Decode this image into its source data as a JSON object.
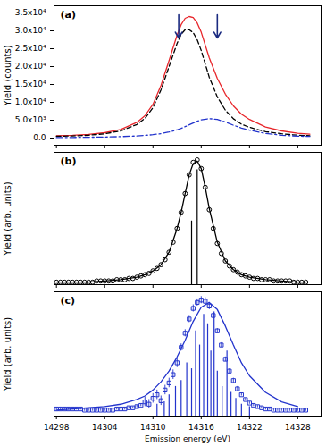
{
  "chart_data": [
    {
      "type": "line",
      "title": "(a)",
      "y_label": "Yield (counts)",
      "grid": false,
      "tick_labels": "y",
      "xlim": [
        14297.7,
        14330.9
      ],
      "xticks": [
        14298,
        14304,
        14310,
        14316,
        14322,
        14328
      ],
      "ylim": [
        -2000,
        37000
      ],
      "yticks": [
        {
          "value": 0,
          "label": "0.0"
        },
        {
          "value": 5000,
          "label": "5.0x10³"
        },
        {
          "value": 10000,
          "label": "1.0x10⁴"
        },
        {
          "value": 15000,
          "label": "1.5x10⁴"
        },
        {
          "value": 20000,
          "label": "2.0x10⁴"
        },
        {
          "value": 25000,
          "label": "2.5x10⁴"
        },
        {
          "value": 30000,
          "label": "3.0x10⁴"
        },
        {
          "value": 35000,
          "label": "3.5x10⁴"
        }
      ],
      "series": [
        {
          "type": "line",
          "color": "#e8262b",
          "line_style": "solid",
          "x": [
            14298,
            14300,
            14302,
            14304,
            14306,
            14308,
            14309,
            14310,
            14311,
            14312,
            14313,
            14313.5,
            14314,
            14314.5,
            14315,
            14315.5,
            14316,
            14317,
            14318,
            14319,
            14320,
            14321,
            14322,
            14324,
            14326,
            14328,
            14329.5
          ],
          "values": [
            650,
            780,
            1030,
            1500,
            2400,
            4400,
            6250,
            9450,
            14750,
            21700,
            28800,
            31700,
            33500,
            34000,
            33700,
            32200,
            29600,
            22450,
            16700,
            12300,
            9000,
            6700,
            5200,
            3100,
            2000,
            1350,
            1100
          ]
        },
        {
          "type": "line",
          "color": "#000000",
          "line_style": "dashed",
          "x": [
            14298,
            14300,
            14302,
            14304,
            14306,
            14308,
            14309,
            14310,
            14311,
            14312,
            14313,
            14313.5,
            14314,
            14314.5,
            14315,
            14315.5,
            14316,
            14317,
            14318,
            14319,
            14320,
            14321,
            14322,
            14324,
            14326,
            14328,
            14329.5
          ],
          "values": [
            500,
            600,
            800,
            1200,
            2000,
            3800,
            5500,
            8500,
            13500,
            20000,
            26500,
            29000,
            30300,
            30300,
            29500,
            27500,
            24500,
            17000,
            11500,
            7800,
            5400,
            3900,
            3000,
            1800,
            1200,
            800,
            650
          ]
        },
        {
          "type": "line",
          "color": "#2233cc",
          "line_style": "dashdot",
          "x": [
            14298,
            14300,
            14302,
            14304,
            14306,
            14308,
            14309,
            14310,
            14311,
            14312,
            14313,
            14313.5,
            14314,
            14314.5,
            14315,
            14315.5,
            14316,
            14317,
            14318,
            14319,
            14320,
            14321,
            14322,
            14324,
            14326,
            14328,
            14329.5
          ],
          "values": [
            150,
            180,
            230,
            300,
            400,
            600,
            750,
            950,
            1250,
            1700,
            2300,
            2700,
            3200,
            3700,
            4200,
            4700,
            5100,
            5450,
            5200,
            4500,
            3600,
            2800,
            2200,
            1300,
            800,
            550,
            450
          ]
        },
        {
          "type": "arrow",
          "color": "#1a2a80",
          "x": [
            14313.2,
            14318.0
          ],
          "values": [
            [
              34500,
              28000
            ],
            [
              34500,
              28000
            ]
          ]
        }
      ]
    },
    {
      "type": "line",
      "title": "(b)",
      "y_label": "Yield (arb. units)",
      "grid": false,
      "tick_labels": false,
      "xlim": [
        14297.7,
        14330.9
      ],
      "xticks": [
        14298,
        14304,
        14310,
        14316,
        14322,
        14328
      ],
      "ylim": [
        0,
        1.06
      ],
      "yticks": [],
      "series": [
        {
          "type": "scatter",
          "color": "#000000",
          "marker": "circle",
          "x": [
            14298,
            14298.5,
            14299,
            14299.5,
            14300,
            14300.5,
            14301,
            14301.5,
            14302,
            14302.5,
            14303,
            14303.5,
            14304,
            14304.5,
            14305,
            14305.5,
            14306,
            14306.5,
            14307,
            14307.5,
            14308,
            14308.5,
            14309,
            14309.5,
            14310,
            14310.5,
            14311,
            14311.5,
            14312,
            14312.5,
            14313,
            14313.5,
            14314,
            14314.5,
            14315,
            14315.5,
            14316,
            14316.5,
            14317,
            14317.5,
            14318,
            14318.5,
            14319,
            14319.5,
            14320,
            14320.5,
            14321,
            14321.5,
            14322,
            14322.5,
            14323,
            14323.5,
            14324,
            14324.5,
            14325,
            14325.5,
            14326,
            14326.5,
            14327,
            14327.5,
            14328,
            14328.5,
            14329
          ],
          "values": [
            0.02,
            0.02,
            0.02,
            0.02,
            0.02,
            0.02,
            0.02,
            0.02,
            0.02,
            0.02,
            0.03,
            0.03,
            0.03,
            0.03,
            0.03,
            0.04,
            0.04,
            0.04,
            0.05,
            0.05,
            0.06,
            0.07,
            0.08,
            0.09,
            0.11,
            0.13,
            0.16,
            0.2,
            0.26,
            0.34,
            0.45,
            0.58,
            0.73,
            0.88,
            0.98,
            1.0,
            0.93,
            0.78,
            0.6,
            0.45,
            0.33,
            0.25,
            0.19,
            0.15,
            0.12,
            0.1,
            0.08,
            0.07,
            0.06,
            0.05,
            0.05,
            0.04,
            0.04,
            0.04,
            0.03,
            0.03,
            0.03,
            0.03,
            0.03,
            0.02,
            0.02,
            0.02,
            0.02
          ]
        },
        {
          "type": "line",
          "color": "#000000",
          "line_style": "solid",
          "x": [
            14298,
            14300,
            14302,
            14304,
            14306,
            14308,
            14309,
            14310,
            14311,
            14312,
            14313,
            14313.5,
            14314,
            14314.5,
            14315,
            14315.5,
            14316,
            14316.5,
            14317,
            14318,
            14319,
            14320,
            14321,
            14322,
            14324,
            14326,
            14328,
            14329
          ],
          "values": [
            0.02,
            0.02,
            0.02,
            0.03,
            0.04,
            0.06,
            0.08,
            0.11,
            0.16,
            0.26,
            0.45,
            0.58,
            0.73,
            0.88,
            0.97,
            0.99,
            0.93,
            0.78,
            0.61,
            0.34,
            0.19,
            0.12,
            0.08,
            0.06,
            0.04,
            0.03,
            0.02,
            0.02
          ]
        },
        {
          "type": "stem",
          "color": "#000000",
          "x": [
            14314.8,
            14315.5
          ],
          "values": [
            0.51,
            0.92
          ]
        }
      ]
    },
    {
      "type": "line",
      "title": "(c)",
      "x_label": "Emission energy (eV)",
      "y_label": "Yield (arb. units)",
      "grid": false,
      "tick_labels": "x",
      "xlim": [
        14297.7,
        14330.9
      ],
      "xticks": [
        14298,
        14304,
        14310,
        14316,
        14322,
        14328
      ],
      "ylim": [
        0,
        1.05
      ],
      "yticks": [],
      "series": [
        {
          "type": "stem",
          "color": "#2233cc",
          "x": [
            14310.5,
            14311.4,
            14312.0,
            14312.8,
            14313.5,
            14314.2,
            14314.8,
            14315.3,
            14315.8,
            14316.3,
            14316.8,
            14317.2,
            14317.6,
            14318.0,
            14318.6,
            14319.2,
            14319.7,
            14320.3,
            14321.0,
            14322.0
          ],
          "values": [
            0.1,
            0.12,
            0.18,
            0.25,
            0.3,
            0.45,
            0.4,
            0.72,
            0.6,
            0.86,
            0.78,
            0.55,
            0.88,
            0.38,
            0.25,
            0.55,
            0.2,
            0.15,
            0.1,
            0.08
          ]
        },
        {
          "type": "line",
          "color": "#2233cc",
          "line_style": "solid",
          "x": [
            14298,
            14300,
            14302,
            14304,
            14306,
            14308,
            14309,
            14310,
            14311,
            14312,
            14313,
            14314,
            14315,
            14316,
            14317,
            14318,
            14319,
            14320,
            14321,
            14322,
            14324,
            14326,
            14328
          ],
          "values": [
            0.05,
            0.06,
            0.07,
            0.08,
            0.1,
            0.14,
            0.17,
            0.22,
            0.29,
            0.38,
            0.5,
            0.64,
            0.8,
            0.92,
            0.96,
            0.9,
            0.76,
            0.6,
            0.45,
            0.34,
            0.2,
            0.12,
            0.08
          ]
        },
        {
          "type": "scatter",
          "color": "#2233cc",
          "marker": "square",
          "x": [
            14298,
            14298.5,
            14299,
            14299.5,
            14300,
            14300.5,
            14301,
            14301.5,
            14302,
            14302.5,
            14303,
            14303.5,
            14304,
            14304.5,
            14305,
            14305.5,
            14306,
            14306.5,
            14307,
            14307.5,
            14308,
            14308.5,
            14309,
            14309.5,
            14310,
            14310.5,
            14311,
            14311.5,
            14312,
            14312.5,
            14313,
            14313.5,
            14314,
            14314.5,
            14315,
            14315.5,
            14316,
            14316.5,
            14317,
            14317.5,
            14318,
            14318.5,
            14319,
            14319.5,
            14320,
            14320.5,
            14321,
            14321.5,
            14322,
            14322.5,
            14323,
            14323.5,
            14324,
            14324.5,
            14325,
            14325.5,
            14326,
            14326.5,
            14327,
            14327.5,
            14328,
            14328.5,
            14329
          ],
          "values": [
            0.06,
            0.06,
            0.06,
            0.06,
            0.06,
            0.06,
            0.06,
            0.05,
            0.05,
            0.05,
            0.05,
            0.05,
            0.05,
            0.05,
            0.05,
            0.06,
            0.06,
            0.06,
            0.07,
            0.07,
            0.08,
            0.09,
            0.12,
            0.1,
            0.15,
            0.18,
            0.13,
            0.22,
            0.28,
            0.35,
            0.45,
            0.58,
            0.7,
            0.82,
            0.91,
            0.96,
            0.98,
            0.97,
            0.93,
            0.85,
            0.72,
            0.6,
            0.48,
            0.38,
            0.3,
            0.23,
            0.18,
            0.14,
            0.11,
            0.09,
            0.08,
            0.07,
            0.06,
            0.06,
            0.05,
            0.05,
            0.05,
            0.05,
            0.05,
            0.05,
            0.05,
            0.05,
            0.05
          ],
          "errors": [
            0.01,
            0.01,
            0.01,
            0.01,
            0.01,
            0.01,
            0.01,
            0.01,
            0.01,
            0.01,
            0.01,
            0.01,
            0.01,
            0.01,
            0.01,
            0.01,
            0.01,
            0.01,
            0.01,
            0.01,
            0.01,
            0.01,
            0.04,
            0.04,
            0.04,
            0.04,
            0.04,
            0.04,
            0.04,
            0.04,
            0.04,
            0.03,
            0.03,
            0.03,
            0.03,
            0.03,
            0.03,
            0.03,
            0.03,
            0.03,
            0.02,
            0.02,
            0.02,
            0.02,
            0.02,
            0.02,
            0.01,
            0.01,
            0.01,
            0.01,
            0.01,
            0.01,
            0.01,
            0.01,
            0.01,
            0.01,
            0.01,
            0.01,
            0.01,
            0.01,
            0.01,
            0.01,
            0.01
          ]
        }
      ]
    }
  ]
}
